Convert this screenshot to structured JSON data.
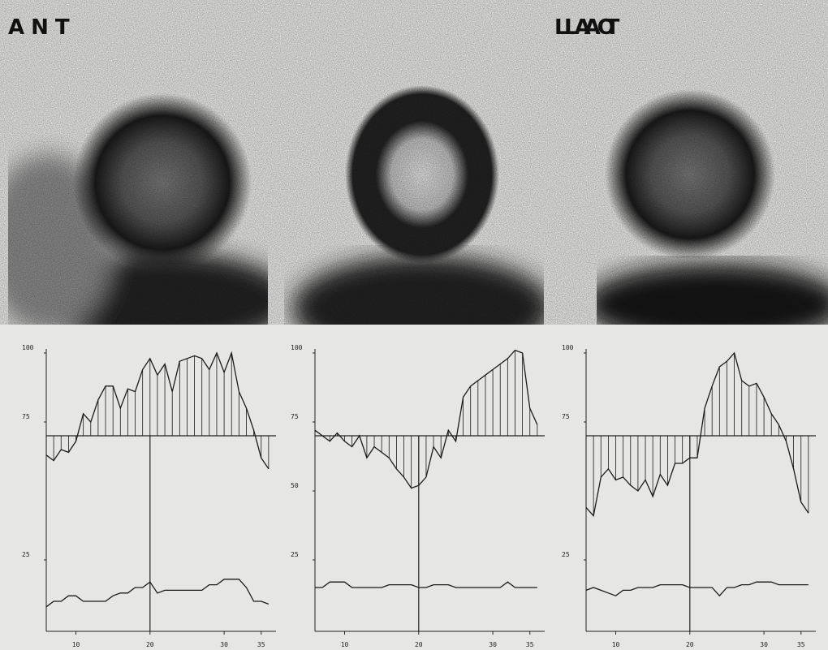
{
  "chart_data": [
    {
      "type": "line",
      "title": "ANT",
      "color": "#1a1a1a",
      "x": [
        6,
        7,
        8,
        9,
        10,
        11,
        12,
        13,
        14,
        15,
        16,
        17,
        18,
        19,
        20,
        21,
        22,
        23,
        24,
        25,
        26,
        27,
        28,
        29,
        30,
        31,
        32,
        33,
        34,
        35,
        36
      ],
      "series": [
        {
          "values": [
            63,
            61,
            65,
            64,
            68,
            78,
            75,
            83,
            88,
            88,
            80,
            87,
            86,
            94,
            98,
            92,
            96,
            86,
            97,
            98,
            99,
            98,
            94,
            100,
            93,
            100,
            86,
            80,
            72,
            62,
            58
          ]
        },
        {
          "values": [
            8,
            10,
            10,
            12,
            12,
            10,
            10,
            10,
            10,
            12,
            13,
            13,
            15,
            15,
            17,
            13,
            14,
            14,
            14,
            14,
            14,
            14,
            16,
            16,
            18,
            18,
            18,
            15,
            10,
            10,
            9
          ]
        }
      ],
      "xlim": [
        6,
        37
      ],
      "xticks": [
        10,
        20,
        30,
        35
      ],
      "ylim": [
        0,
        100
      ],
      "yticks": [
        25,
        75,
        100
      ],
      "baseline": 70,
      "marker_x": 20
    },
    {
      "type": "line",
      "title": "LAO",
      "color": "#1a1a1a",
      "x": [
        6,
        7,
        8,
        9,
        10,
        11,
        12,
        13,
        14,
        15,
        16,
        17,
        18,
        19,
        20,
        21,
        22,
        23,
        24,
        25,
        26,
        27,
        28,
        29,
        30,
        31,
        32,
        33,
        34,
        35,
        36
      ],
      "series": [
        {
          "values": [
            72,
            70,
            68,
            71,
            68,
            66,
            70,
            62,
            66,
            64,
            62,
            58,
            55,
            51,
            52,
            55,
            66,
            62,
            72,
            68,
            84,
            88,
            90,
            92,
            94,
            96,
            98,
            101,
            100,
            80,
            74
          ]
        },
        {
          "values": [
            15,
            15,
            17,
            17,
            17,
            15,
            15,
            15,
            15,
            15,
            16,
            16,
            16,
            16,
            15,
            15,
            16,
            16,
            16,
            15,
            15,
            15,
            15,
            15,
            15,
            15,
            17,
            15,
            15,
            15,
            15
          ]
        }
      ],
      "xlim": [
        6,
        37
      ],
      "xticks": [
        10,
        20,
        30,
        35
      ],
      "ylim": [
        0,
        100
      ],
      "yticks": [
        25,
        50,
        75,
        100
      ],
      "baseline": 70,
      "marker_x": 20
    },
    {
      "type": "line",
      "title": "LAT",
      "color": "#1a1a1a",
      "x": [
        6,
        7,
        8,
        9,
        10,
        11,
        12,
        13,
        14,
        15,
        16,
        17,
        18,
        19,
        20,
        21,
        22,
        23,
        24,
        25,
        26,
        27,
        28,
        29,
        30,
        31,
        32,
        33,
        34,
        35,
        36
      ],
      "series": [
        {
          "values": [
            44,
            41,
            55,
            58,
            54,
            55,
            52,
            50,
            54,
            48,
            56,
            52,
            60,
            60,
            62,
            62,
            80,
            88,
            95,
            97,
            100,
            90,
            88,
            89,
            84,
            78,
            74,
            68,
            58,
            46,
            42
          ]
        },
        {
          "values": [
            14,
            15,
            14,
            13,
            12,
            14,
            14,
            15,
            15,
            15,
            16,
            16,
            16,
            16,
            15,
            15,
            15,
            15,
            12,
            15,
            15,
            16,
            16,
            17,
            17,
            17,
            16,
            16,
            16,
            16,
            16
          ]
        }
      ],
      "xlim": [
        6,
        37
      ],
      "xticks": [
        10,
        20,
        30,
        35
      ],
      "ylim": [
        0,
        100
      ],
      "yticks": [
        25,
        75,
        100
      ],
      "baseline": 70,
      "marker_x": 20
    }
  ]
}
